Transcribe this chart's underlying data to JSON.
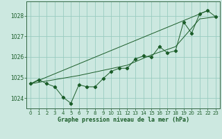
{
  "title": "Graphe pression niveau de la mer (hPa)",
  "background_color": "#cce8e0",
  "grid_color": "#99ccc0",
  "line_color": "#1a5c28",
  "spine_color": "#336644",
  "xlim": [
    -0.5,
    23.5
  ],
  "ylim": [
    1023.5,
    1028.7
  ],
  "yticks": [
    1024,
    1025,
    1026,
    1027,
    1028
  ],
  "xticks": [
    0,
    1,
    2,
    3,
    4,
    5,
    6,
    7,
    8,
    9,
    10,
    11,
    12,
    13,
    14,
    15,
    16,
    17,
    18,
    19,
    20,
    21,
    22,
    23
  ],
  "series": {
    "main": [
      [
        0,
        1024.7
      ],
      [
        1,
        1024.9
      ],
      [
        2,
        1024.7
      ],
      [
        3,
        1024.55
      ],
      [
        4,
        1024.05
      ],
      [
        5,
        1023.75
      ],
      [
        6,
        1024.65
      ],
      [
        7,
        1024.55
      ],
      [
        8,
        1024.55
      ],
      [
        9,
        1024.95
      ],
      [
        10,
        1025.3
      ],
      [
        11,
        1025.45
      ],
      [
        12,
        1025.45
      ],
      [
        13,
        1025.9
      ],
      [
        14,
        1026.05
      ],
      [
        15,
        1026.0
      ],
      [
        16,
        1026.5
      ],
      [
        17,
        1026.2
      ],
      [
        18,
        1026.3
      ],
      [
        19,
        1027.7
      ],
      [
        20,
        1027.15
      ],
      [
        21,
        1028.1
      ],
      [
        22,
        1028.25
      ],
      [
        23,
        1027.95
      ]
    ],
    "line2": [
      [
        0,
        1024.7
      ],
      [
        3,
        1024.9
      ],
      [
        6,
        1025.1
      ],
      [
        9,
        1025.35
      ],
      [
        12,
        1025.6
      ],
      [
        15,
        1026.1
      ],
      [
        18,
        1026.5
      ],
      [
        21,
        1027.85
      ],
      [
        23,
        1027.95
      ]
    ],
    "line3": [
      [
        0,
        1024.7
      ],
      [
        22,
        1028.25
      ]
    ]
  }
}
